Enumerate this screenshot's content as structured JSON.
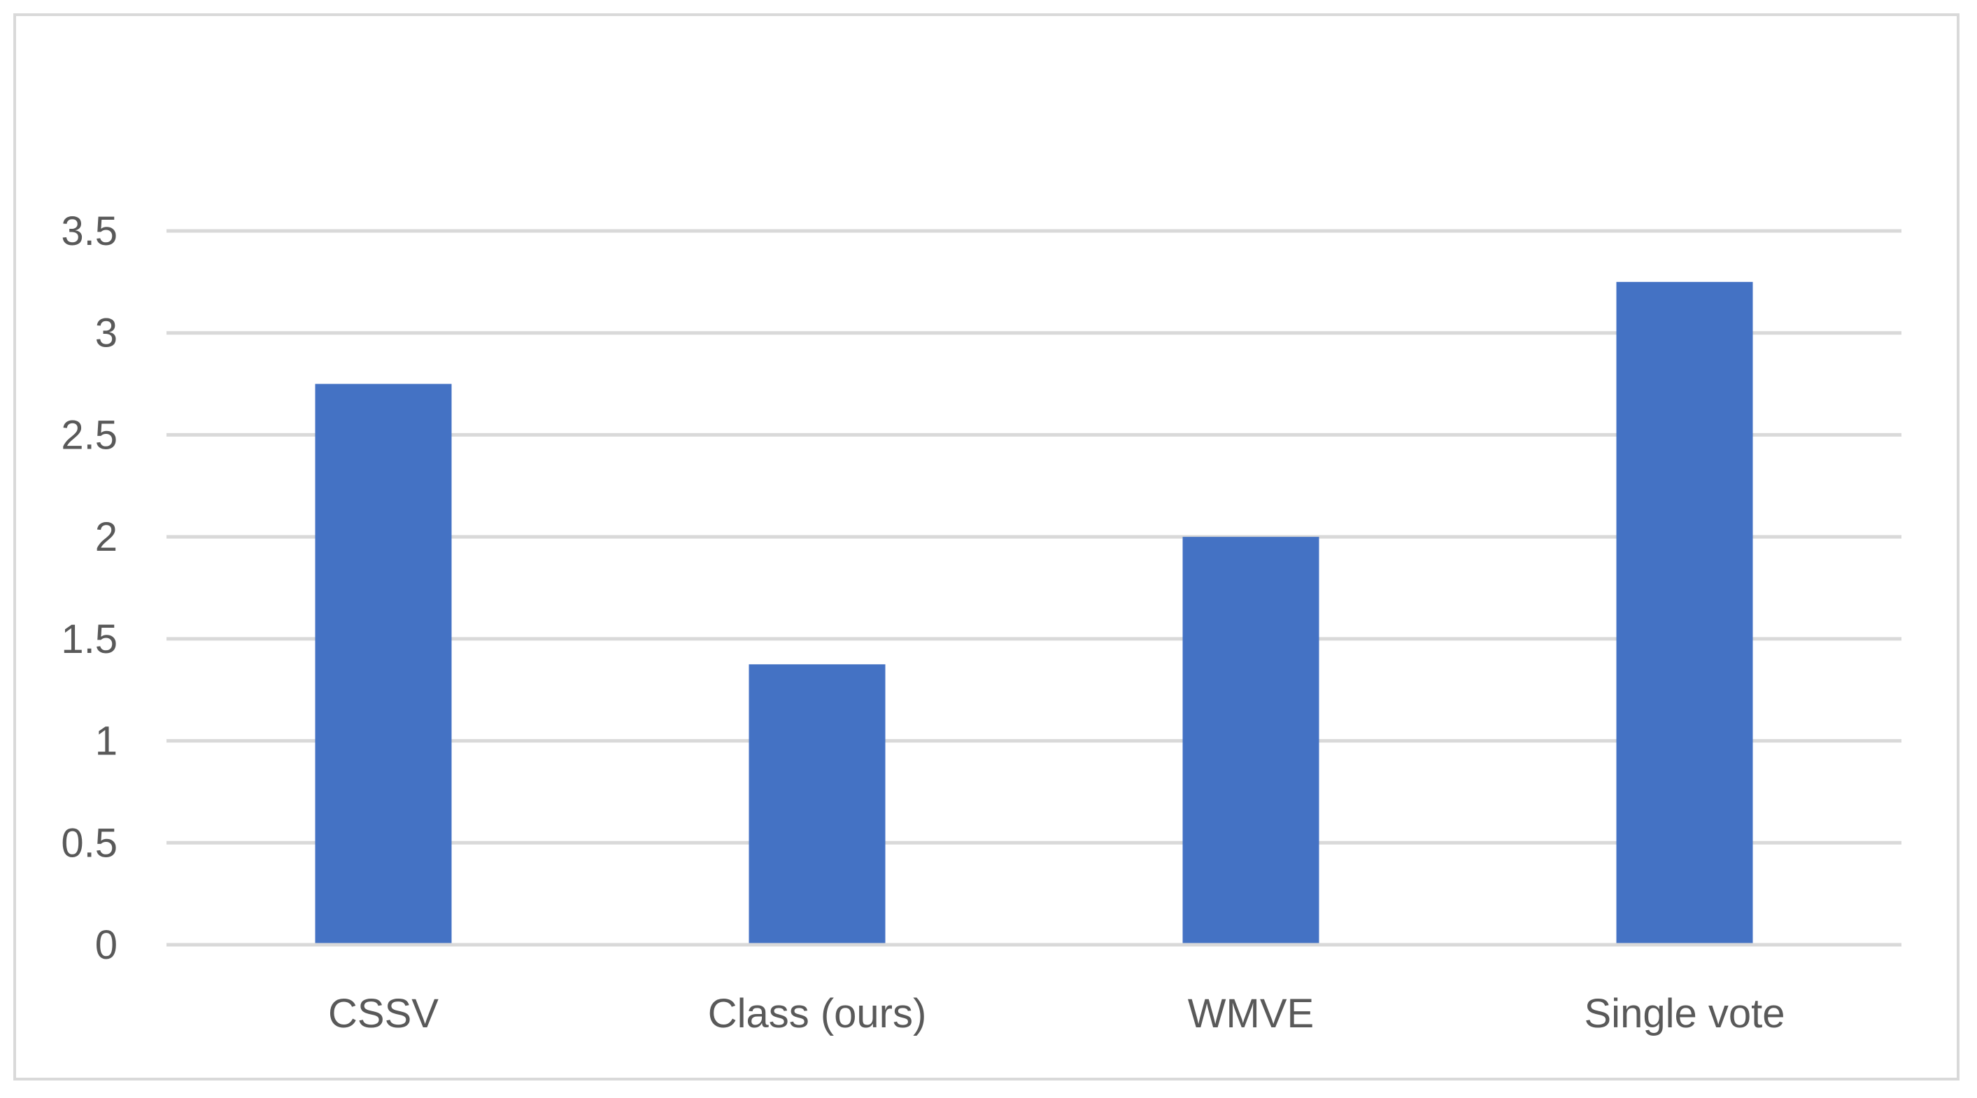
{
  "chart_data": {
    "type": "bar",
    "title": "",
    "xlabel": "",
    "ylabel": "",
    "categories": [
      "CSSV",
      "Class (ours)",
      "WMVE",
      "Single vote"
    ],
    "values": [
      2.75,
      1.375,
      2.0,
      3.25
    ],
    "ylim": [
      0,
      3.5
    ],
    "yticks": [
      "0",
      "0.5",
      "1",
      "1.5",
      "2",
      "2.5",
      "3",
      "3.5"
    ],
    "grid": true,
    "legend": "none",
    "bar_color": "#4472C4",
    "grid_color": "#d9d9d9"
  }
}
